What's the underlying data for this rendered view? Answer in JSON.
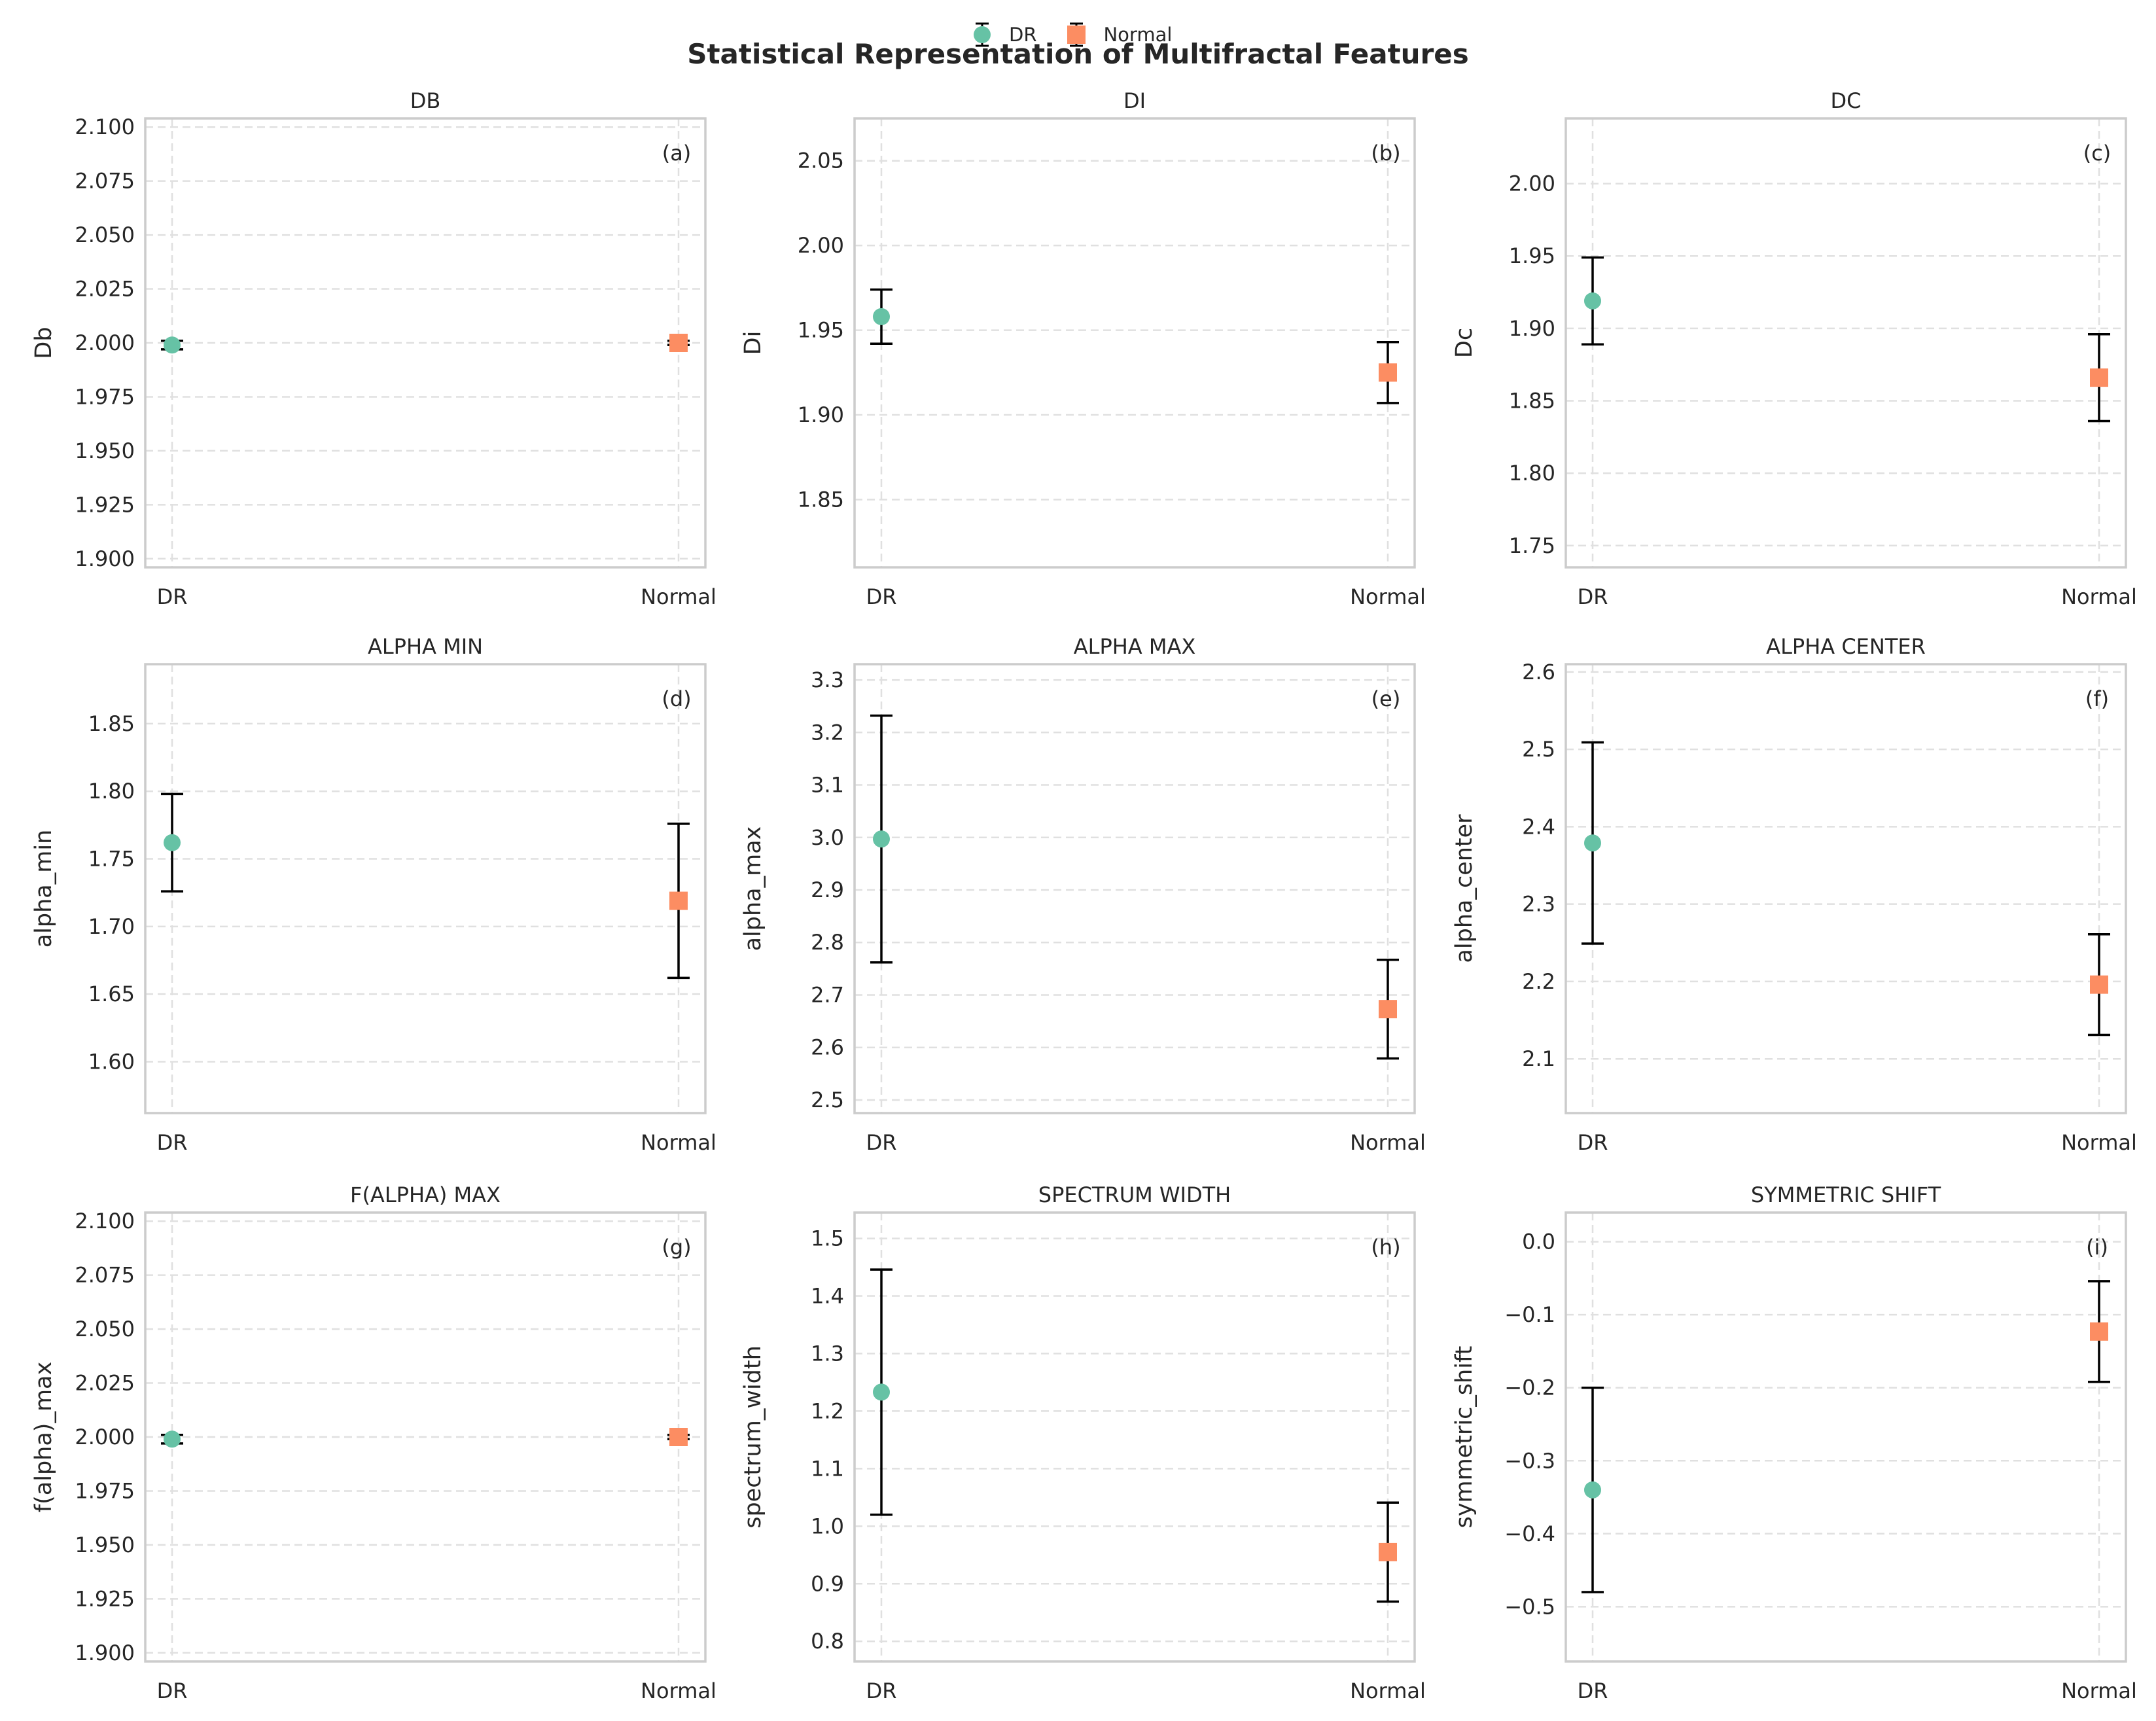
{
  "figure": {
    "suptitle": "Statistical Representation of Multifractal Features",
    "legend": [
      {
        "label": "DR",
        "marker": "circle",
        "color": "#66c2a5"
      },
      {
        "label": "Normal",
        "marker": "square",
        "color": "#fc8d62"
      }
    ],
    "colors": {
      "DR": "#66c2a5",
      "Normal": "#fc8d62",
      "errorbar": "#000000",
      "grid": "#e0e0e0",
      "spine": "#cccccc"
    },
    "legend_placement": "top-center",
    "grid": true
  },
  "chart_data": [
    {
      "type": "scatter",
      "panel": "(a)",
      "title": "DB",
      "xlabel": "",
      "ylabel": "Db",
      "categories": [
        "DR",
        "Normal"
      ],
      "ylim": [
        1.896,
        2.104
      ],
      "yticks": [
        "1.900",
        "1.925",
        "1.950",
        "1.975",
        "2.000",
        "2.025",
        "2.050",
        "2.075",
        "2.100"
      ],
      "series": [
        {
          "name": "DR",
          "values": [
            1.999
          ],
          "err": [
            0.002
          ]
        },
        {
          "name": "Normal",
          "values": [
            2.0
          ],
          "err": [
            0.001
          ]
        }
      ]
    },
    {
      "type": "scatter",
      "panel": "(b)",
      "title": "DI",
      "xlabel": "",
      "ylabel": "Di",
      "categories": [
        "DR",
        "Normal"
      ],
      "ylim": [
        1.81,
        2.075
      ],
      "yticks": [
        "1.85",
        "1.90",
        "1.95",
        "2.00",
        "2.05"
      ],
      "series": [
        {
          "name": "DR",
          "values": [
            1.958
          ],
          "err": [
            0.016
          ]
        },
        {
          "name": "Normal",
          "values": [
            1.925
          ],
          "err": [
            0.018
          ]
        }
      ]
    },
    {
      "type": "scatter",
      "panel": "(c)",
      "title": "DC",
      "xlabel": "",
      "ylabel": "Dc",
      "categories": [
        "DR",
        "Normal"
      ],
      "ylim": [
        1.735,
        2.045
      ],
      "yticks": [
        "1.75",
        "1.80",
        "1.85",
        "1.90",
        "1.95",
        "2.00"
      ],
      "series": [
        {
          "name": "DR",
          "values": [
            1.919
          ],
          "err": [
            0.03
          ]
        },
        {
          "name": "Normal",
          "values": [
            1.866
          ],
          "err": [
            0.03
          ]
        }
      ]
    },
    {
      "type": "scatter",
      "panel": "(d)",
      "title": "ALPHA MIN",
      "xlabel": "",
      "ylabel": "alpha_min",
      "categories": [
        "DR",
        "Normal"
      ],
      "ylim": [
        1.562,
        1.894
      ],
      "yticks": [
        "1.60",
        "1.65",
        "1.70",
        "1.75",
        "1.80",
        "1.85"
      ],
      "series": [
        {
          "name": "DR",
          "values": [
            1.762
          ],
          "err": [
            0.036
          ]
        },
        {
          "name": "Normal",
          "values": [
            1.719
          ],
          "err": [
            0.057
          ]
        }
      ]
    },
    {
      "type": "scatter",
      "panel": "(e)",
      "title": "ALPHA MAX",
      "xlabel": "",
      "ylabel": "alpha_max",
      "categories": [
        "DR",
        "Normal"
      ],
      "ylim": [
        2.475,
        3.33
      ],
      "yticks": [
        "2.5",
        "2.6",
        "2.7",
        "2.8",
        "2.9",
        "3.0",
        "3.1",
        "3.2",
        "3.3"
      ],
      "series": [
        {
          "name": "DR",
          "values": [
            2.997
          ],
          "err": [
            0.235
          ]
        },
        {
          "name": "Normal",
          "values": [
            2.673
          ],
          "err": [
            0.094
          ]
        }
      ]
    },
    {
      "type": "scatter",
      "panel": "(f)",
      "title": "ALPHA CENTER",
      "xlabel": "",
      "ylabel": "alpha_center",
      "categories": [
        "DR",
        "Normal"
      ],
      "ylim": [
        2.03,
        2.61
      ],
      "yticks": [
        "2.1",
        "2.2",
        "2.3",
        "2.4",
        "2.5",
        "2.6"
      ],
      "series": [
        {
          "name": "DR",
          "values": [
            2.379
          ],
          "err": [
            0.13
          ]
        },
        {
          "name": "Normal",
          "values": [
            2.196
          ],
          "err": [
            0.065
          ]
        }
      ]
    },
    {
      "type": "scatter",
      "panel": "(g)",
      "title": "F(ALPHA) MAX",
      "xlabel": "",
      "ylabel": "f(alpha)_max",
      "categories": [
        "DR",
        "Normal"
      ],
      "ylim": [
        1.896,
        2.104
      ],
      "yticks": [
        "1.900",
        "1.925",
        "1.950",
        "1.975",
        "2.000",
        "2.025",
        "2.050",
        "2.075",
        "2.100"
      ],
      "series": [
        {
          "name": "DR",
          "values": [
            1.999
          ],
          "err": [
            0.002
          ]
        },
        {
          "name": "Normal",
          "values": [
            2.0
          ],
          "err": [
            0.001
          ]
        }
      ]
    },
    {
      "type": "scatter",
      "panel": "(h)",
      "title": "SPECTRUM WIDTH",
      "xlabel": "",
      "ylabel": "spectrum_width",
      "categories": [
        "DR",
        "Normal"
      ],
      "ylim": [
        0.765,
        1.545
      ],
      "yticks": [
        "0.8",
        "0.9",
        "1.0",
        "1.1",
        "1.2",
        "1.3",
        "1.4",
        "1.5"
      ],
      "series": [
        {
          "name": "DR",
          "values": [
            1.233
          ],
          "err": [
            0.213
          ]
        },
        {
          "name": "Normal",
          "values": [
            0.955
          ],
          "err": [
            0.086
          ]
        }
      ]
    },
    {
      "type": "scatter",
      "panel": "(i)",
      "title": "SYMMETRIC SHIFT",
      "xlabel": "",
      "ylabel": "symmetric_shift",
      "categories": [
        "DR",
        "Normal"
      ],
      "ylim": [
        -0.575,
        0.04
      ],
      "yticks": [
        "−0.5",
        "−0.4",
        "−0.3",
        "−0.2",
        "−0.1",
        "0.0"
      ],
      "series": [
        {
          "name": "DR",
          "values": [
            -0.34
          ],
          "err": [
            0.14
          ]
        },
        {
          "name": "Normal",
          "values": [
            -0.123
          ],
          "err": [
            0.069
          ]
        }
      ]
    }
  ]
}
